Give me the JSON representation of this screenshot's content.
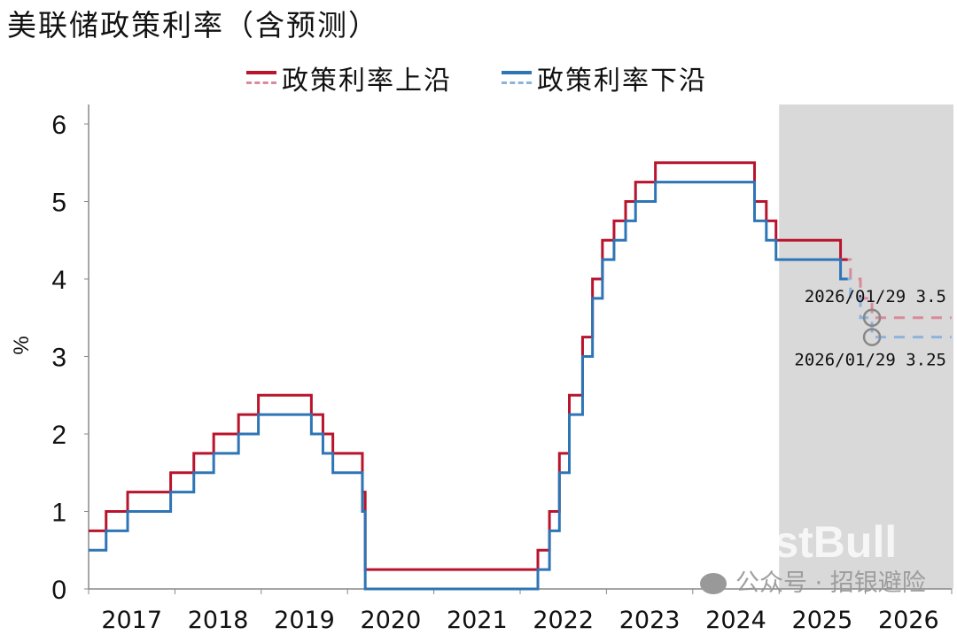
{
  "chart_data": {
    "type": "line",
    "title": "美联储政策利率（含预测）",
    "ylabel": "%",
    "xlabel": "",
    "ylim": [
      0,
      6
    ],
    "yticks": [
      "0",
      "1",
      "2",
      "3",
      "4",
      "5",
      "6"
    ],
    "xlim": [
      "2017-01-01",
      "2026-12-31"
    ],
    "xticks": [
      "2017",
      "2018",
      "2019",
      "2020",
      "2021",
      "2022",
      "2023",
      "2024",
      "2025",
      "2026"
    ],
    "grid": false,
    "legend_position": "top",
    "forecast_shading_start": "2025-01-01",
    "colors": {
      "upper": "#b8142c",
      "lower": "#2e75b6",
      "upper_forecast": "#d98a9b",
      "lower_forecast": "#8db3dc",
      "shade": "#d9d9d9"
    },
    "series": [
      {
        "name": "政策利率上沿",
        "style": "step",
        "actual": [
          [
            "2017-01-01",
            0.75
          ],
          [
            "2017-03-16",
            1.0
          ],
          [
            "2017-06-15",
            1.25
          ],
          [
            "2017-12-14",
            1.5
          ],
          [
            "2018-03-22",
            1.75
          ],
          [
            "2018-06-14",
            2.0
          ],
          [
            "2018-09-27",
            2.25
          ],
          [
            "2018-12-20",
            2.5
          ],
          [
            "2019-08-01",
            2.25
          ],
          [
            "2019-09-19",
            2.0
          ],
          [
            "2019-10-31",
            1.75
          ],
          [
            "2020-03-04",
            1.25
          ],
          [
            "2020-03-16",
            0.25
          ],
          [
            "2022-03-17",
            0.5
          ],
          [
            "2022-05-05",
            1.0
          ],
          [
            "2022-06-16",
            1.75
          ],
          [
            "2022-07-28",
            2.5
          ],
          [
            "2022-09-22",
            3.25
          ],
          [
            "2022-11-03",
            4.0
          ],
          [
            "2022-12-15",
            4.5
          ],
          [
            "2023-02-02",
            4.75
          ],
          [
            "2023-03-23",
            5.0
          ],
          [
            "2023-05-04",
            5.25
          ],
          [
            "2023-07-27",
            5.5
          ],
          [
            "2024-09-19",
            5.0
          ],
          [
            "2024-11-08",
            4.75
          ],
          [
            "2024-12-19",
            4.5
          ],
          [
            "2025-09-18",
            4.25
          ]
        ],
        "forecast": [
          [
            "2025-09-18",
            4.25
          ],
          [
            "2025-10-30",
            4.0
          ],
          [
            "2025-12-11",
            3.75
          ],
          [
            "2026-01-29",
            3.5
          ],
          [
            "2026-12-31",
            3.5
          ]
        ]
      },
      {
        "name": "政策利率下沿",
        "style": "step",
        "actual": [
          [
            "2017-01-01",
            0.5
          ],
          [
            "2017-03-16",
            0.75
          ],
          [
            "2017-06-15",
            1.0
          ],
          [
            "2017-12-14",
            1.25
          ],
          [
            "2018-03-22",
            1.5
          ],
          [
            "2018-06-14",
            1.75
          ],
          [
            "2018-09-27",
            2.0
          ],
          [
            "2018-12-20",
            2.25
          ],
          [
            "2019-08-01",
            2.0
          ],
          [
            "2019-09-19",
            1.75
          ],
          [
            "2019-10-31",
            1.5
          ],
          [
            "2020-03-04",
            1.0
          ],
          [
            "2020-03-16",
            0.0
          ],
          [
            "2022-03-17",
            0.25
          ],
          [
            "2022-05-05",
            0.75
          ],
          [
            "2022-06-16",
            1.5
          ],
          [
            "2022-07-28",
            2.25
          ],
          [
            "2022-09-22",
            3.0
          ],
          [
            "2022-11-03",
            3.75
          ],
          [
            "2022-12-15",
            4.25
          ],
          [
            "2023-02-02",
            4.5
          ],
          [
            "2023-03-23",
            4.75
          ],
          [
            "2023-05-04",
            5.0
          ],
          [
            "2023-07-27",
            5.25
          ],
          [
            "2024-09-19",
            4.75
          ],
          [
            "2024-11-08",
            4.5
          ],
          [
            "2024-12-19",
            4.25
          ],
          [
            "2025-09-18",
            4.0
          ]
        ],
        "forecast": [
          [
            "2025-09-18",
            4.0
          ],
          [
            "2025-10-30",
            3.75
          ],
          [
            "2025-12-11",
            3.5
          ],
          [
            "2026-01-29",
            3.25
          ],
          [
            "2026-12-31",
            3.25
          ]
        ]
      }
    ],
    "annotations": [
      {
        "date": "2026-01-29",
        "value": 3.5,
        "text": "2026/01/29  3.5"
      },
      {
        "date": "2026-01-29",
        "value": 3.25,
        "text": "2026/01/29  3.25"
      }
    ]
  },
  "watermark": {
    "brand": "FastBull",
    "wechat": "公众号 · 招银避险"
  }
}
